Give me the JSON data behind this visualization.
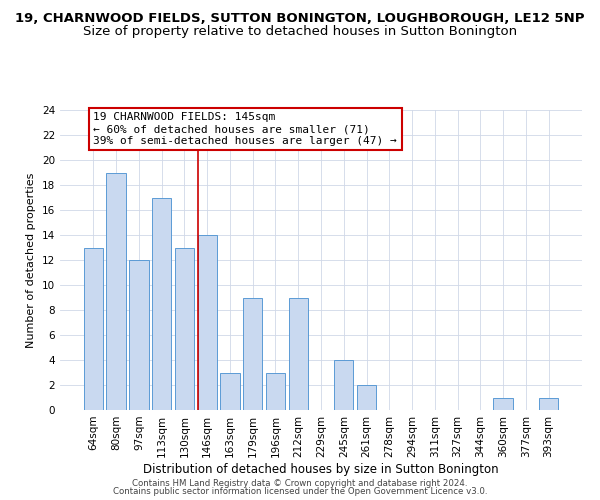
{
  "title": "19, CHARNWOOD FIELDS, SUTTON BONINGTON, LOUGHBOROUGH, LE12 5NP",
  "subtitle": "Size of property relative to detached houses in Sutton Bonington",
  "xlabel": "Distribution of detached houses by size in Sutton Bonington",
  "ylabel": "Number of detached properties",
  "bar_labels": [
    "64sqm",
    "80sqm",
    "97sqm",
    "113sqm",
    "130sqm",
    "146sqm",
    "163sqm",
    "179sqm",
    "196sqm",
    "212sqm",
    "229sqm",
    "245sqm",
    "261sqm",
    "278sqm",
    "294sqm",
    "311sqm",
    "327sqm",
    "344sqm",
    "360sqm",
    "377sqm",
    "393sqm"
  ],
  "bar_values": [
    13,
    19,
    12,
    17,
    13,
    14,
    3,
    9,
    3,
    9,
    0,
    4,
    2,
    0,
    0,
    0,
    0,
    0,
    1,
    0,
    1
  ],
  "bar_color": "#c9d9f0",
  "bar_edge_color": "#5b9bd5",
  "highlight_index": 5,
  "highlight_line_color": "#cc0000",
  "ylim": [
    0,
    24
  ],
  "yticks": [
    0,
    2,
    4,
    6,
    8,
    10,
    12,
    14,
    16,
    18,
    20,
    22,
    24
  ],
  "annotation_title": "19 CHARNWOOD FIELDS: 145sqm",
  "annotation_line1": "← 60% of detached houses are smaller (71)",
  "annotation_line2": "39% of semi-detached houses are larger (47) →",
  "annotation_box_color": "#ffffff",
  "annotation_box_edge": "#cc0000",
  "footer_line1": "Contains HM Land Registry data © Crown copyright and database right 2024.",
  "footer_line2": "Contains public sector information licensed under the Open Government Licence v3.0.",
  "background_color": "#ffffff",
  "grid_color": "#d0d8e8",
  "title_fontsize": 9.5,
  "subtitle_fontsize": 9.5,
  "xlabel_fontsize": 8.5,
  "ylabel_fontsize": 8.0,
  "tick_fontsize": 7.5,
  "annotation_fontsize": 8.0,
  "footer_fontsize": 6.2
}
